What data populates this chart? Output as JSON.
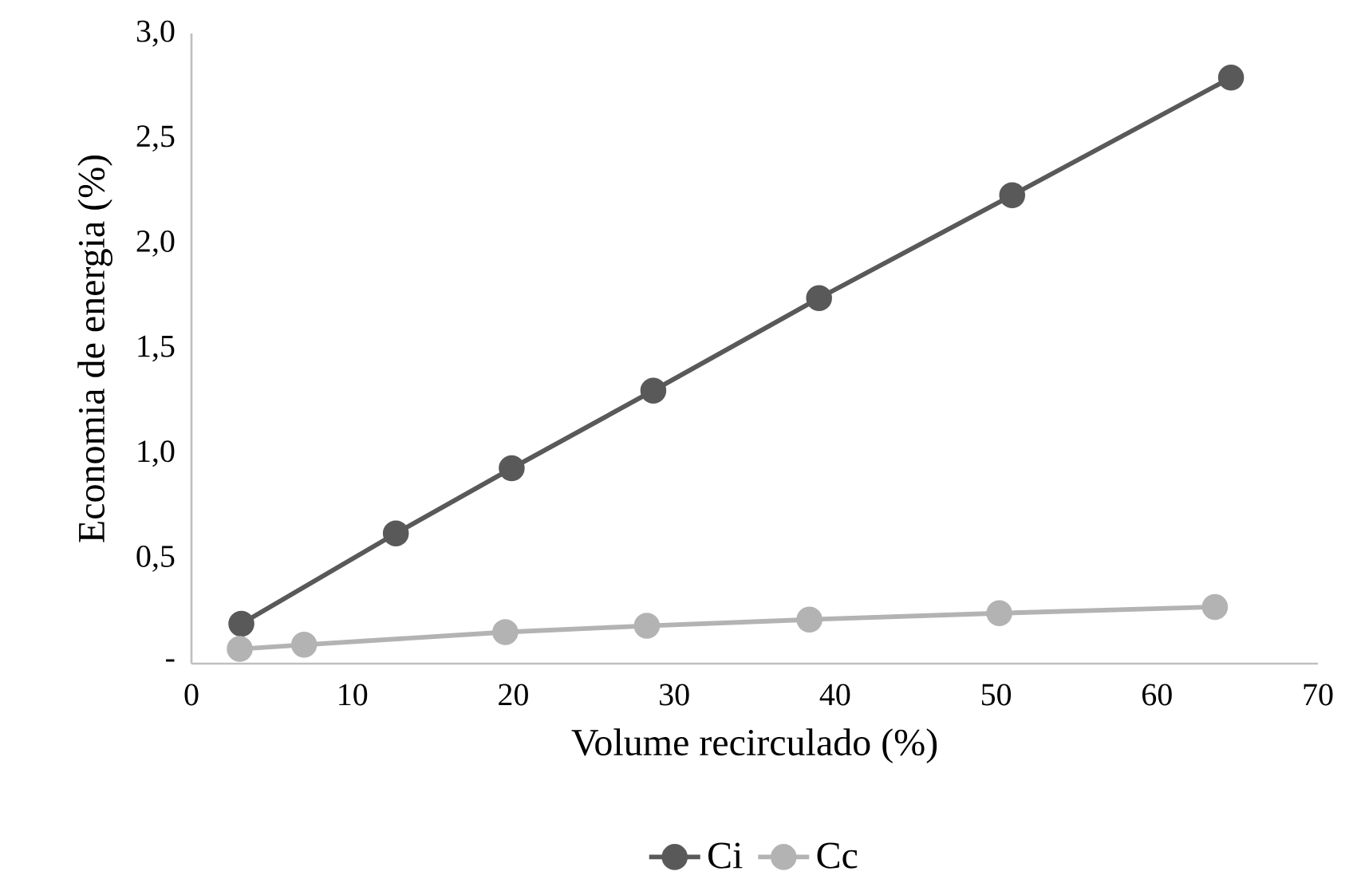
{
  "chart_data": {
    "type": "line",
    "xlabel": "Volume recirculado (%)",
    "ylabel": "Economia de energia (%)",
    "series": [
      {
        "name": "Ci",
        "color": "#595959",
        "x": [
          3.1,
          12.7,
          19.9,
          28.7,
          39.0,
          51.0,
          64.6
        ],
        "values": [
          0.19,
          0.62,
          0.93,
          1.3,
          1.74,
          2.23,
          2.79
        ]
      },
      {
        "name": "Cc",
        "color": "#b3b3b3",
        "x": [
          3.0,
          7.0,
          19.5,
          28.3,
          38.4,
          50.2,
          63.6
        ],
        "values": [
          0.07,
          0.09,
          0.15,
          0.18,
          0.21,
          0.24,
          0.27
        ]
      }
    ],
    "xlim": [
      0,
      70
    ],
    "xticks": [
      0,
      10,
      20,
      30,
      40,
      50,
      60,
      70
    ],
    "ylim": [
      0,
      3
    ],
    "yticks": [
      {
        "value": 0,
        "label": "-"
      },
      {
        "value": 0.5,
        "label": "0,5"
      },
      {
        "value": 1,
        "label": "1,0"
      },
      {
        "value": 1.5,
        "label": "1,5"
      },
      {
        "value": 2,
        "label": "2,0"
      },
      {
        "value": 2.5,
        "label": "2,5"
      },
      {
        "value": 3,
        "label": "3,0"
      }
    ],
    "grid": false,
    "legend": "bottom",
    "marker": "circle",
    "line_style": "solid"
  }
}
